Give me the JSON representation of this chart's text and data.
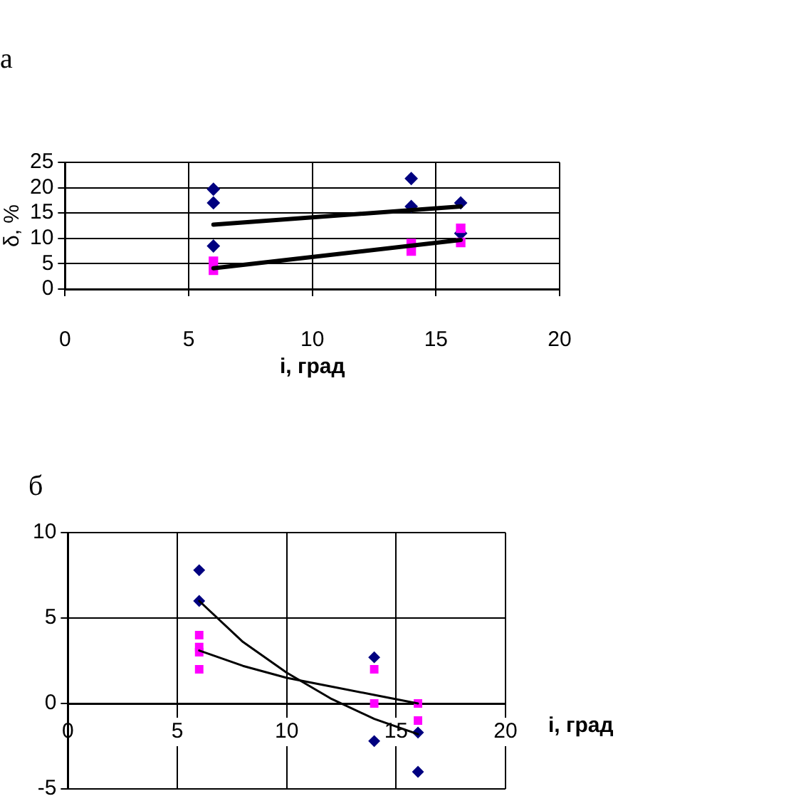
{
  "chart_data": [
    {
      "type": "scatter",
      "title": "а",
      "xlabel": "i, град",
      "ylabel": "δ, %",
      "xlim": [
        0,
        20
      ],
      "xticks": [
        0,
        5,
        10,
        15,
        20
      ],
      "ylim": [
        0,
        25
      ],
      "yticks": [
        0,
        5,
        10,
        15,
        20,
        25
      ],
      "grid": true,
      "legend": false,
      "series": [
        {
          "color": "#000080",
          "marker": "diamond",
          "x": [
            6,
            6,
            6,
            14,
            14,
            16,
            16
          ],
          "values": [
            19.7,
            17,
            8.5,
            21.8,
            16.3,
            17,
            11
          ]
        },
        {
          "color": "#ff00ff",
          "marker": "square",
          "x": [
            6,
            6,
            14,
            14,
            16,
            16
          ],
          "values": [
            5.5,
            3.7,
            9,
            7.5,
            12,
            9.2
          ]
        },
        {
          "type": "line",
          "color": "#000000",
          "marker": "none",
          "x": [
            6,
            16
          ],
          "values": [
            12.7,
            16.3
          ]
        },
        {
          "type": "line",
          "color": "#000000",
          "marker": "none",
          "x": [
            6,
            16
          ],
          "values": [
            4.1,
            9.7
          ]
        }
      ]
    },
    {
      "type": "scatter",
      "title": "б",
      "xlabel": "i, град",
      "xlim": [
        0,
        20
      ],
      "xticks": [
        0,
        5,
        10,
        15,
        20
      ],
      "ylim": [
        -5,
        10
      ],
      "yticks": [
        -5,
        0,
        5,
        10
      ],
      "grid": true,
      "legend": false,
      "series": [
        {
          "color": "#000080",
          "marker": "diamond",
          "x": [
            6,
            6,
            14,
            14,
            16,
            16
          ],
          "values": [
            7.8,
            6,
            2.7,
            -2.2,
            -1.7,
            -4
          ]
        },
        {
          "color": "#ff00ff",
          "marker": "square",
          "x": [
            6,
            6,
            6,
            6,
            14,
            14,
            16,
            16
          ],
          "values": [
            4,
            3.3,
            3,
            2,
            2,
            0,
            0,
            -1
          ]
        },
        {
          "type": "line",
          "color": "#000000",
          "marker": "none",
          "x": [
            6,
            8,
            10,
            12,
            14,
            16
          ],
          "values": [
            6,
            3.6,
            1.8,
            0.3,
            -0.9,
            -1.8
          ]
        },
        {
          "type": "line",
          "color": "#000000",
          "marker": "none",
          "x": [
            6,
            8,
            10,
            12,
            14,
            16
          ],
          "values": [
            3.1,
            2.2,
            1.5,
            1,
            0.5,
            0
          ]
        }
      ]
    }
  ]
}
